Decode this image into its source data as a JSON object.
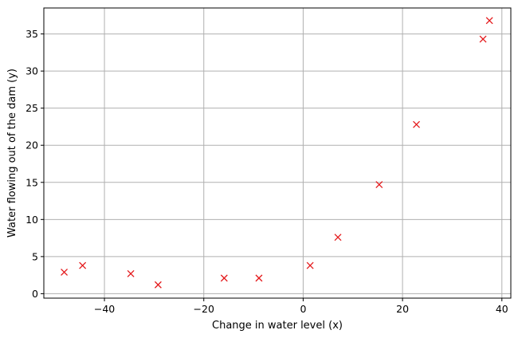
{
  "chart_data": {
    "type": "scatter",
    "title": "",
    "xlabel": "Change in water level (x)",
    "ylabel": "Water flowing out of the dam (y)",
    "xlim": [
      -52.2,
      41.8
    ],
    "ylim": [
      -0.6,
      38.5
    ],
    "xticks": [
      -40,
      -20,
      0,
      20,
      40
    ],
    "yticks": [
      0,
      5,
      10,
      15,
      20,
      25,
      30,
      35
    ],
    "grid": true,
    "marker": "x",
    "color": "#e41a1c",
    "x": [
      -48.1,
      -44.4,
      -34.7,
      -29.2,
      -15.9,
      -8.9,
      1.4,
      7.0,
      15.3,
      22.8,
      36.2,
      37.5
    ],
    "y": [
      2.9,
      3.8,
      2.7,
      1.2,
      2.1,
      2.1,
      3.8,
      7.6,
      14.7,
      22.8,
      34.3,
      36.8
    ]
  }
}
